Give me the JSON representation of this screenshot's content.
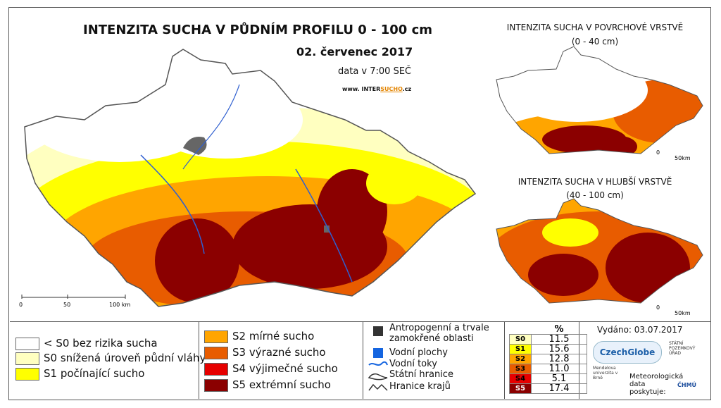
{
  "title": "INTENZITA SUCHA V PŮDNÍM PROFILU 0 - 100 cm",
  "date": "02. červenec 2017",
  "data_time": "data v 7:00 SEČ",
  "website_prefix": "www. INTER",
  "website_highlight": "SUCHO",
  "website_suffix": ".cz",
  "inset_top": {
    "title": "INTENZITA SUCHA V POVRCHOVÉ VRSTVĚ",
    "subtitle": "(0 - 40 cm)",
    "scale": [
      "0",
      "50km"
    ]
  },
  "inset_bottom": {
    "title": "INTENZITA SUCHA V HLUBŠÍ VRSTVĚ",
    "subtitle": "(40 - 100 cm)",
    "scale": [
      "0",
      "50km"
    ]
  },
  "main_scale": [
    "0",
    "50",
    "100 km"
  ],
  "legend_classes": [
    {
      "label": "< S0 bez rizika sucha",
      "color": "#ffffff"
    },
    {
      "label": "S0 snížená úroveň půdní vláhy",
      "color": "#ffffc0"
    },
    {
      "label": "S1 počínající sucho",
      "color": "#ffff00"
    },
    {
      "label": "S2 mírné sucho",
      "color": "#ffa500"
    },
    {
      "label": "S3 výrazné sucho",
      "color": "#e85c00"
    },
    {
      "label": "S4 výjimečné sucho",
      "color": "#e60000"
    },
    {
      "label": "S5 extrémní sucho",
      "color": "#8b0000"
    }
  ],
  "legend_features": [
    {
      "label": "Antropogenní a trvale zamokřené oblasti",
      "icon": "urban-area-icon"
    },
    {
      "label": "Vodní plochy",
      "icon": "water-body-icon"
    },
    {
      "label": "Vodní toky",
      "icon": "river-line-icon"
    },
    {
      "label": "Státní hranice",
      "icon": "state-border-icon"
    },
    {
      "label": "Hranice krajů",
      "icon": "region-border-icon"
    }
  ],
  "percent_table": {
    "header": "%",
    "rows": [
      {
        "code": "S0",
        "value": "11.5",
        "color": "#ffffc0"
      },
      {
        "code": "S1",
        "value": "15.6",
        "color": "#ffff00"
      },
      {
        "code": "S2",
        "value": "12.8",
        "color": "#ffa500"
      },
      {
        "code": "S3",
        "value": "11.0",
        "color": "#e85c00"
      },
      {
        "code": "S4",
        "value": "5.1",
        "color": "#e60000"
      },
      {
        "code": "S5",
        "value": "17.4",
        "color": "#8b0000"
      }
    ]
  },
  "issued": "Vydáno: 03.07.2017",
  "logos": {
    "czechglobe": "CzechGlobe",
    "spu": "STÁTNÍ POZEMKOVÝ ÚŘAD",
    "mendel": "Mendelova univerzita v Brně",
    "meteo": "Meteorologická data poskytuje:",
    "chmu": "ČHMÚ"
  }
}
